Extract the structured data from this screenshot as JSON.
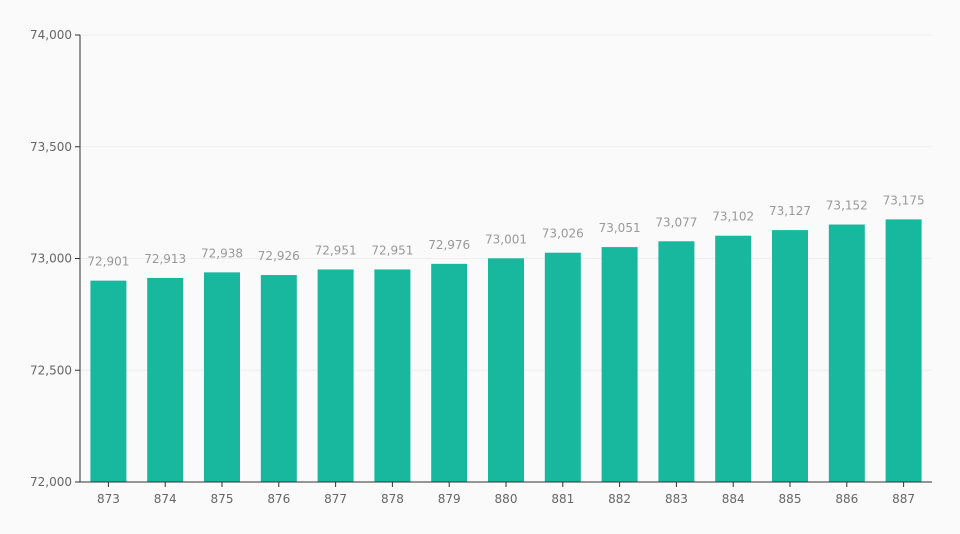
{
  "colors": {
    "bar": "#17b89e",
    "background": "#fafafa",
    "axis": "#333333",
    "grid": "#eeeeee",
    "tick_text": "#666666",
    "data_label": "#999999"
  },
  "chart_data": {
    "type": "bar",
    "categories": [
      "873",
      "874",
      "875",
      "876",
      "877",
      "878",
      "879",
      "880",
      "881",
      "882",
      "883",
      "884",
      "885",
      "886",
      "887"
    ],
    "values": [
      72901,
      72913,
      72938,
      72926,
      72951,
      72951,
      72976,
      73001,
      73026,
      73051,
      73077,
      73102,
      73127,
      73152,
      73175
    ],
    "value_labels": [
      "72,901",
      "72,913",
      "72,938",
      "72,926",
      "72,951",
      "72,951",
      "72,976",
      "73,001",
      "73,026",
      "73,051",
      "73,077",
      "73,102",
      "73,127",
      "73,152",
      "73,175"
    ],
    "ylim": [
      72000,
      74000
    ],
    "yticks": [
      72000,
      72500,
      73000,
      73500,
      74000
    ],
    "ytick_labels": [
      "72,000",
      "72,500",
      "73,000",
      "73,500",
      "74,000"
    ],
    "grid": true,
    "legend": "none"
  }
}
